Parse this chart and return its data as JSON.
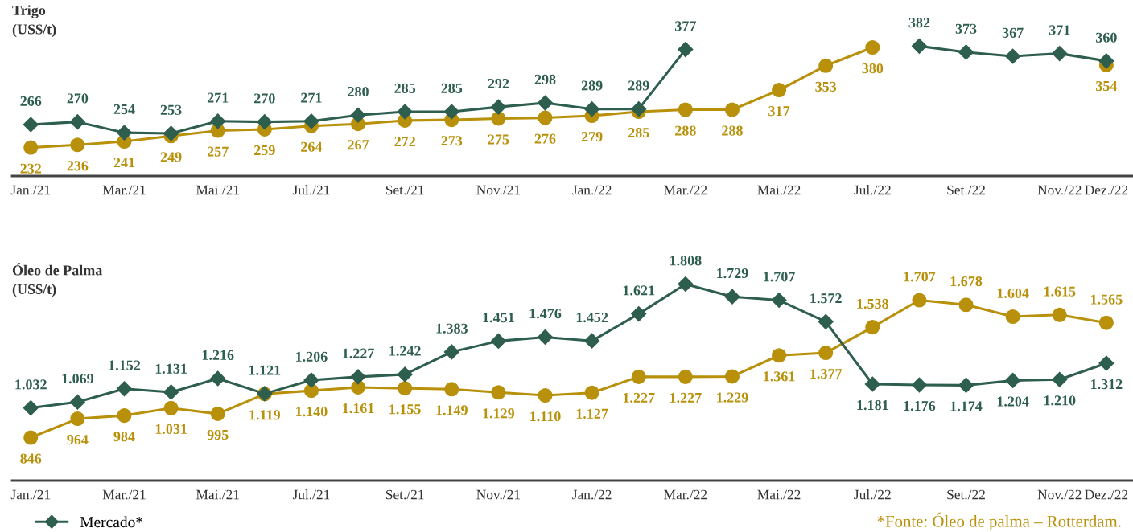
{
  "chart_data": [
    {
      "type": "line",
      "title": "Trigo\n(US$/t)",
      "categories": [
        "Jan./21",
        null,
        "Mar./21",
        null,
        "Mai./21",
        null,
        "Jul./21",
        null,
        "Set./21",
        null,
        "Nov./21",
        null,
        "Jan./22",
        null,
        "Mar./22",
        null,
        "Mai./22",
        null,
        "Jul./22",
        null,
        "Set./22",
        null,
        "Nov./22",
        "Dez./22"
      ],
      "tick_labels": "x",
      "grid": false,
      "legend": false,
      "series": [
        {
          "color": "#2e5e4e",
          "marker": "diamond",
          "values": [
            266,
            270,
            254,
            253,
            271,
            270,
            271,
            280,
            285,
            285,
            292,
            298,
            289,
            289,
            377,
            null,
            null,
            null,
            null,
            382,
            373,
            367,
            371,
            360
          ],
          "value_labels": [
            "266",
            "270",
            "254",
            "253",
            "271",
            "270",
            "271",
            "280",
            "285",
            "285",
            "292",
            "298",
            "289",
            "289",
            "377",
            null,
            null,
            null,
            null,
            "382",
            "373",
            "367",
            "371",
            "360"
          ]
        },
        {
          "color": "#b8900a",
          "marker": "circle",
          "values": [
            232,
            236,
            241,
            249,
            257,
            259,
            264,
            267,
            272,
            273,
            275,
            276,
            279,
            285,
            288,
            288,
            317,
            353,
            380,
            null,
            null,
            null,
            null,
            354
          ],
          "value_labels": [
            "232",
            "236",
            "241",
            "249",
            "257",
            "259",
            "264",
            "267",
            "272",
            "273",
            "275",
            "276",
            "279",
            "285",
            "288",
            "288",
            "317",
            "353",
            "380",
            null,
            null,
            null,
            null,
            "354"
          ]
        }
      ]
    },
    {
      "type": "line",
      "title": "Óleo de Palma\n(US$/t)",
      "categories": [
        "Jan./21",
        null,
        "Mar./21",
        null,
        "Mai./21",
        null,
        "Jul./21",
        null,
        "Set./21",
        null,
        "Nov./21",
        null,
        "Jan./22",
        null,
        "Mar./22",
        null,
        "Mai./22",
        null,
        "Jul./22",
        null,
        "Set./22",
        null,
        "Nov./22",
        "Dez./22"
      ],
      "tick_labels": "x",
      "grid": false,
      "legend": "bottom left",
      "annotations": [
        "*Fonte: Óleo de palma – Rotterdam."
      ],
      "series": [
        {
          "name": "Mercado*",
          "color": "#2e5e4e",
          "marker": "diamond",
          "values": [
            1032,
            1069,
            1152,
            1131,
            1216,
            1121,
            1206,
            1227,
            1242,
            1383,
            1451,
            1476,
            1452,
            1621,
            1808,
            1729,
            1707,
            1572,
            1181,
            1176,
            1174,
            1204,
            1210,
            1312
          ],
          "value_labels": [
            "1.032",
            "1.069",
            "1.152",
            "1.131",
            "1.216",
            "1.121",
            "1.206",
            "1.227",
            "1.242",
            "1.383",
            "1.451",
            "1.476",
            "1.452",
            "1.621",
            "1.808",
            "1.729",
            "1.707",
            "1.572",
            "1.181",
            "1.176",
            "1.174",
            "1.204",
            "1.210",
            "1.312"
          ]
        },
        {
          "color": "#b8900a",
          "marker": "circle",
          "values": [
            846,
            964,
            984,
            1031,
            995,
            1119,
            1140,
            1161,
            1155,
            1149,
            1129,
            1110,
            1127,
            1227,
            1227,
            1229,
            1361,
            1377,
            1538,
            1707,
            1678,
            1604,
            1615,
            1565
          ],
          "value_labels": [
            "846",
            "964",
            "984",
            "1.031",
            "995",
            "1.119",
            "1.140",
            "1.161",
            "1.155",
            "1.149",
            "1.129",
            "1.110",
            "1.127",
            "1.227",
            "1.227",
            "1.229",
            "1.361",
            "1.377",
            "1.538",
            "1.707",
            "1.678",
            "1.604",
            "1.615",
            "1.565"
          ]
        }
      ]
    }
  ]
}
